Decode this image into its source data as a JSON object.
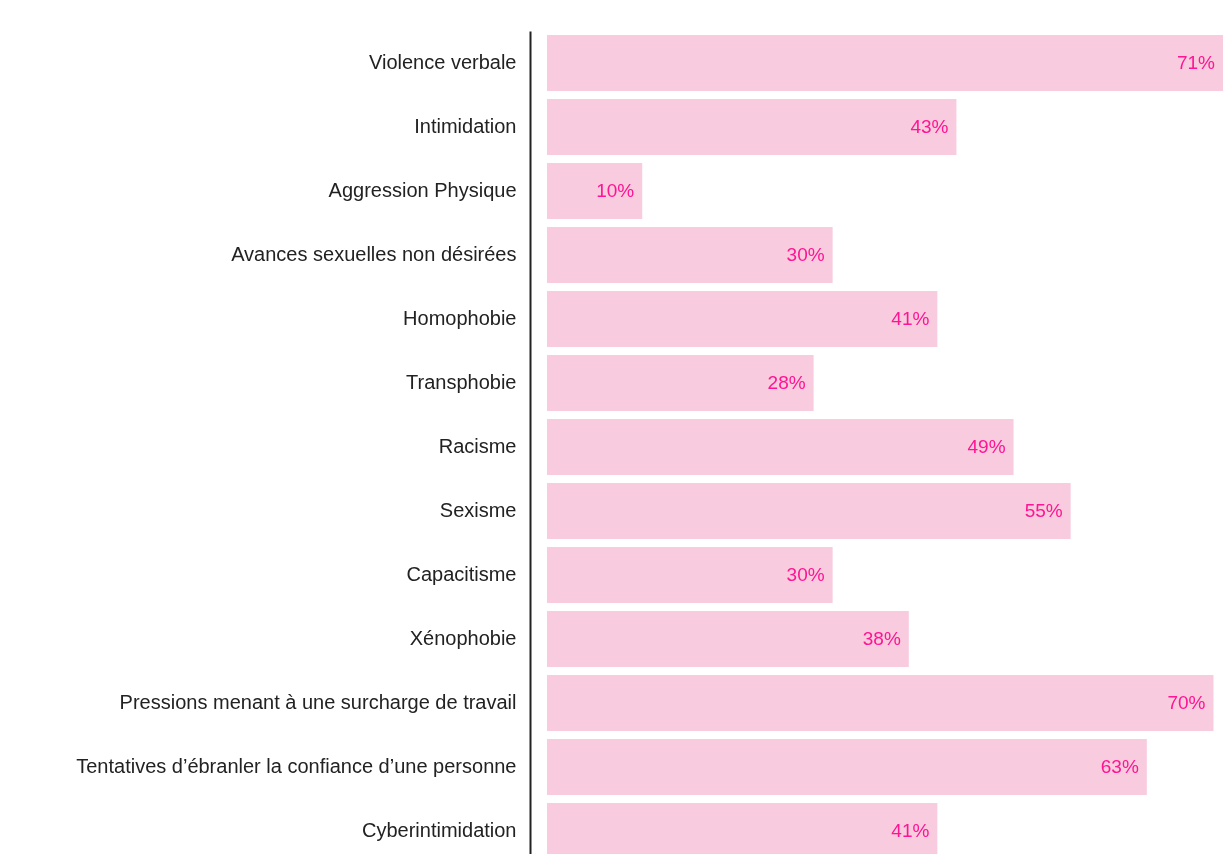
{
  "chart_data": {
    "type": "bar",
    "orientation": "horizontal",
    "color": "#f8cbdf",
    "categories": [
      "Violence verbale",
      "Intimidation",
      "Aggression Physique",
      "Avances sexuelles non désirées",
      "Homophobie",
      "Transphobie",
      "Racisme",
      "Sexisme",
      "Capacitisme",
      "Xénophobie",
      "Pressions menant à une surcharge de travail",
      "Tentatives d’ébranler la confiance d’une personne",
      "Cyberintimidation"
    ],
    "values": [
      71,
      43,
      10,
      30,
      41,
      28,
      49,
      55,
      30,
      38,
      70,
      63,
      41
    ],
    "value_labels": [
      "71%",
      "43%",
      "10%",
      "30%",
      "41%",
      "28%",
      "49%",
      "55%",
      "30%",
      "38%",
      "70%",
      "63%",
      "41%"
    ]
  }
}
